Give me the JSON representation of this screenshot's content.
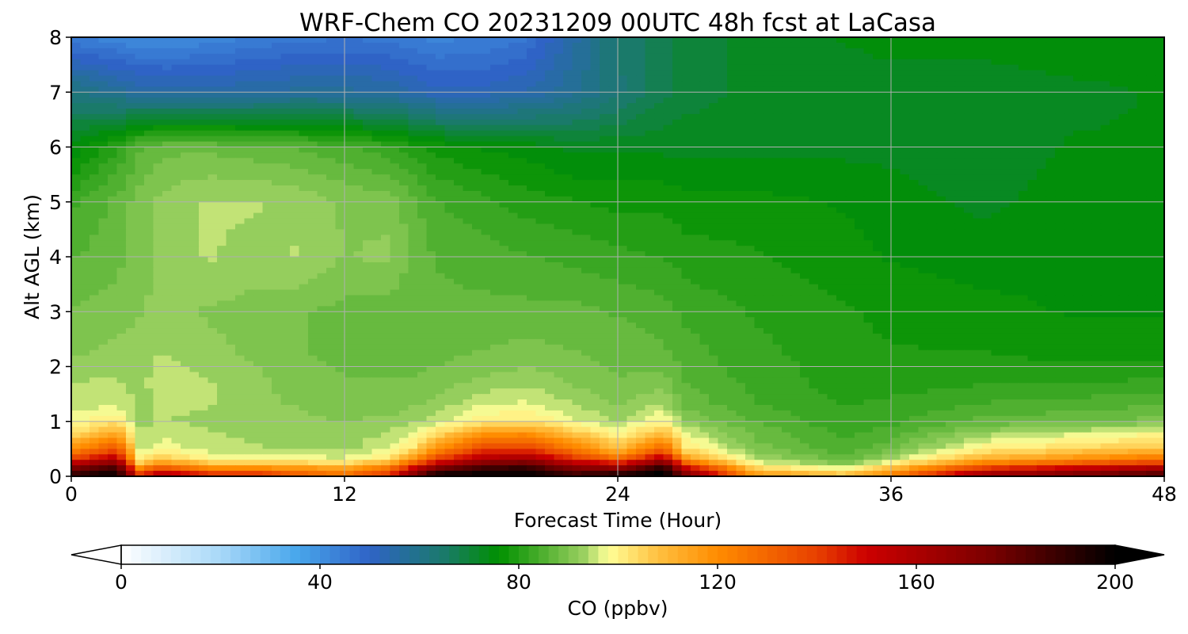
{
  "chart_data": {
    "type": "heatmap",
    "title": "WRF-Chem CO  20231209 00UTC 48h fcst at LaCasa",
    "xlabel": "Forecast Time (Hour)",
    "ylabel": "Alt AGL (km)",
    "xlim": [
      0,
      48
    ],
    "ylim": [
      0,
      8
    ],
    "x_ticks": [
      "0",
      "12",
      "24",
      "36",
      "48"
    ],
    "x_tick_values": [
      0,
      12,
      24,
      36,
      48
    ],
    "y_ticks": [
      "0",
      "1",
      "2",
      "3",
      "4",
      "5",
      "6",
      "7",
      "8"
    ],
    "y_tick_values": [
      0,
      1,
      2,
      3,
      4,
      5,
      6,
      7,
      8
    ],
    "grid": true,
    "colorbar": {
      "label": "CO  (ppbv)",
      "min": 0,
      "max": 200,
      "extend": "both",
      "ticks": [
        "0",
        "40",
        "80",
        "120",
        "160",
        "200"
      ],
      "tick_values": [
        0,
        40,
        80,
        120,
        160,
        200
      ],
      "color_stops": [
        {
          "value": 0,
          "color": "#ffffff"
        },
        {
          "value": 20,
          "color": "#a8d8f8"
        },
        {
          "value": 35,
          "color": "#4aa8ec"
        },
        {
          "value": 50,
          "color": "#2f63c6"
        },
        {
          "value": 65,
          "color": "#1a7a6a"
        },
        {
          "value": 76,
          "color": "#009000"
        },
        {
          "value": 85,
          "color": "#50b030"
        },
        {
          "value": 93,
          "color": "#9ad060"
        },
        {
          "value": 98,
          "color": "#ffff98"
        },
        {
          "value": 108,
          "color": "#ffc040"
        },
        {
          "value": 120,
          "color": "#ff8c00"
        },
        {
          "value": 140,
          "color": "#e84000"
        },
        {
          "value": 150,
          "color": "#cc0000"
        },
        {
          "value": 175,
          "color": "#7a0000"
        },
        {
          "value": 200,
          "color": "#000000"
        }
      ]
    },
    "x": [
      0,
      2,
      3,
      4,
      6,
      8,
      10,
      12,
      14,
      15,
      16,
      18,
      20,
      22,
      24,
      26,
      27,
      30,
      34,
      36,
      40,
      44,
      48
    ],
    "y": [
      0,
      0.1,
      0.2,
      0.3,
      0.5,
      0.8,
      1.0,
      1.3,
      1.7,
      2.2,
      3.0,
      4.0,
      5.0,
      6.0,
      7.0,
      8.0
    ],
    "z": [
      [
        190,
        198,
        150,
        165,
        150,
        150,
        135,
        128,
        145,
        175,
        200,
        200,
        200,
        190,
        200,
        200,
        175,
        120,
        110,
        125,
        170,
        180,
        190
      ],
      [
        185,
        195,
        130,
        145,
        130,
        130,
        125,
        120,
        135,
        162,
        185,
        195,
        195,
        180,
        180,
        200,
        165,
        110,
        100,
        115,
        150,
        162,
        172
      ],
      [
        165,
        180,
        112,
        125,
        112,
        110,
        110,
        108,
        118,
        140,
        160,
        180,
        185,
        165,
        155,
        185,
        140,
        100,
        92,
        102,
        130,
        140,
        150
      ],
      [
        140,
        160,
        100,
        108,
        100,
        98,
        98,
        97,
        103,
        120,
        140,
        160,
        165,
        145,
        130,
        160,
        118,
        94,
        88,
        94,
        112,
        120,
        128
      ],
      [
        118,
        135,
        95,
        98,
        95,
        94,
        93,
        93,
        96,
        102,
        118,
        138,
        140,
        125,
        108,
        130,
        102,
        90,
        84,
        88,
        100,
        104,
        108
      ],
      [
        102,
        112,
        94,
        95,
        94,
        93,
        93,
        92,
        94,
        96,
        102,
        115,
        118,
        106,
        98,
        108,
        96,
        88,
        83,
        85,
        92,
        95,
        98
      ],
      [
        97,
        102,
        93,
        94,
        93,
        92,
        92,
        91,
        92,
        93,
        95,
        100,
        102,
        97,
        93,
        100,
        91,
        86,
        82,
        83,
        87,
        88,
        90
      ],
      [
        95,
        96,
        93,
        94,
        94,
        92,
        91,
        90,
        90,
        91,
        92,
        96,
        97,
        94,
        91,
        94,
        88,
        84,
        81,
        82,
        84,
        85,
        86
      ],
      [
        94,
        94,
        93,
        95,
        94,
        92,
        90,
        89,
        89,
        89,
        90,
        92,
        93,
        91,
        89,
        90,
        86,
        83,
        80,
        80,
        81,
        81,
        82
      ],
      [
        91,
        92,
        93,
        94,
        92,
        91,
        89,
        88,
        88,
        88,
        88,
        89,
        90,
        89,
        88,
        87,
        85,
        82,
        80,
        79,
        79,
        78,
        78
      ],
      [
        89,
        90,
        91,
        92,
        91,
        90,
        89,
        88,
        87,
        87,
        87,
        87,
        87,
        87,
        86,
        85,
        83,
        81,
        79,
        78,
        77,
        76,
        76
      ],
      [
        86,
        88,
        90,
        92,
        94,
        93,
        94,
        91,
        92,
        88,
        86,
        85,
        84,
        83,
        82,
        81,
        80,
        79,
        77,
        76,
        75,
        76,
        75
      ],
      [
        83,
        87,
        90,
        92,
        94,
        94,
        93,
        91,
        90,
        87,
        84,
        82,
        80,
        79,
        78,
        78,
        77,
        77,
        76,
        75,
        73,
        75,
        74
      ],
      [
        74,
        81,
        86,
        88,
        88,
        87,
        86,
        84,
        82,
        80,
        78,
        76,
        75,
        73,
        73,
        73,
        73,
        73,
        73,
        73,
        72,
        74,
        74
      ],
      [
        62,
        58,
        56,
        55,
        55,
        56,
        57,
        57,
        56,
        54,
        52,
        52,
        54,
        58,
        63,
        68,
        70,
        72,
        72,
        72,
        72,
        73,
        74
      ],
      [
        44,
        42,
        41,
        41,
        42,
        44,
        45,
        46,
        45,
        44,
        43,
        44,
        46,
        55,
        64,
        68,
        70,
        72,
        74,
        75,
        75,
        76,
        76
      ]
    ]
  }
}
